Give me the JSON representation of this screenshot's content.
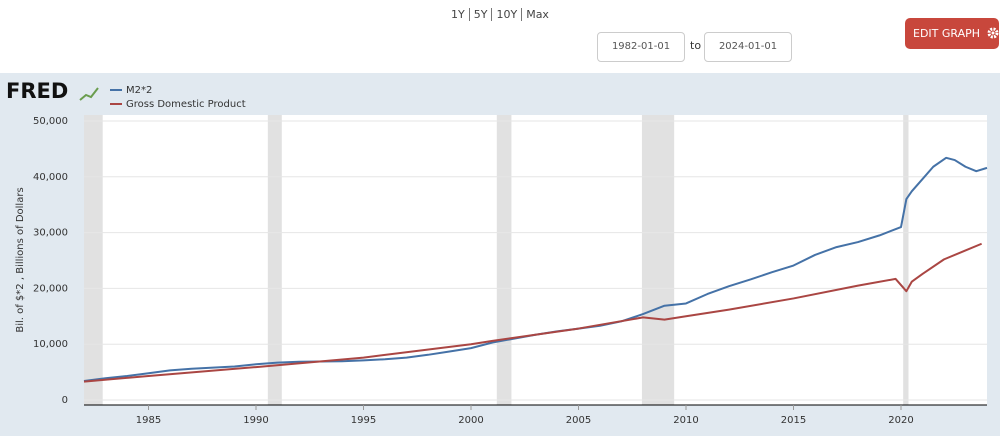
{
  "controls": {
    "range_links": [
      "1Y",
      "5Y",
      "10Y",
      "Max"
    ],
    "date_from": "1982-01-01",
    "date_joiner": "to",
    "date_to": "2024-01-01",
    "edit_button": "EDIT GRAPH"
  },
  "logo": "FRED",
  "chart_data": {
    "type": "line",
    "y_label": "Bil. of $*2 , Billions of Dollars",
    "xlim": [
      1982,
      2024
    ],
    "xticks": [
      1985,
      1990,
      1995,
      2000,
      2005,
      2010,
      2015,
      2020
    ],
    "ylim": [
      0,
      50000
    ],
    "yticks": [
      0,
      {
        "value": 10000,
        "label": "10,000"
      },
      {
        "value": 20000,
        "label": "20,000"
      },
      {
        "value": 30000,
        "label": "30,000"
      },
      {
        "value": 40000,
        "label": "40,000"
      },
      {
        "value": 50000,
        "label": "50,000"
      }
    ],
    "grid": true,
    "recession_color": "#e1e1e1",
    "recessions": [
      [
        1982,
        1982.87
      ],
      [
        1990.55,
        1991.2
      ],
      [
        2001.2,
        2001.88
      ],
      [
        2007.95,
        2009.45
      ],
      [
        2020.1,
        2020.35
      ]
    ],
    "series": [
      {
        "name": "M2*2",
        "color": "#4572a7",
        "x": [
          1982,
          1983,
          1984,
          1985,
          1986,
          1987,
          1988,
          1989,
          1990,
          1991,
          1992,
          1993,
          1994,
          1995,
          1996,
          1997,
          1998,
          1999,
          2000,
          2001,
          2002,
          2003,
          2004,
          2005,
          2006,
          2007,
          2008,
          2009,
          2010,
          2011,
          2012,
          2013,
          2014,
          2015,
          2016,
          2017,
          2018,
          2019,
          2020,
          2020.25,
          2020.5,
          2021,
          2021.5,
          2022.1,
          2022.5,
          2023,
          2023.5,
          2024
        ],
        "values": [
          3400,
          3900,
          4300,
          4800,
          5300,
          5600,
          5800,
          6000,
          6400,
          6700,
          6850,
          6900,
          6950,
          7100,
          7300,
          7600,
          8100,
          8700,
          9300,
          10300,
          11000,
          11700,
          12300,
          12800,
          13300,
          14100,
          15400,
          16900,
          17300,
          19000,
          20400,
          21600,
          22900,
          24100,
          26000,
          27400,
          28300,
          29500,
          31000,
          36000,
          37400,
          39600,
          41800,
          43400,
          43000,
          41800,
          41000,
          41600
        ]
      },
      {
        "name": "Gross Domestic Product",
        "color": "#aa4643",
        "x": [
          1982,
          1985,
          1990,
          1995,
          2000,
          2001,
          2005,
          2008,
          2009,
          2010,
          2012,
          2015,
          2018,
          2019.75,
          2020.25,
          2020.5,
          2021,
          2022,
          2023,
          2023.75
        ],
        "values": [
          3300,
          4300,
          5900,
          7600,
          10000,
          10600,
          12800,
          14800,
          14400,
          15000,
          16200,
          18200,
          20500,
          21700,
          19500,
          21200,
          22600,
          25200,
          26800,
          28000
        ]
      }
    ]
  }
}
